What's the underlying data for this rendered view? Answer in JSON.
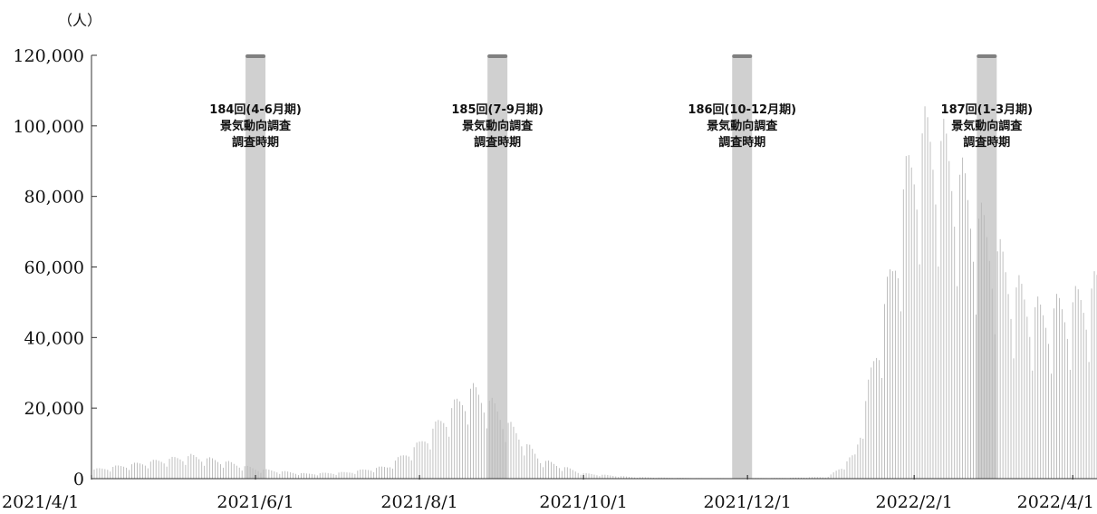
{
  "chart_data": {
    "type": "bar",
    "unit_label": "（人）",
    "x_start": "2021/4/1",
    "x_end": "2022/4/10",
    "x_tick_labels": [
      "2021/4/1",
      "2021/6/1",
      "2021/8/1",
      "2021/10/1",
      "2021/12/1",
      "2022/2/1",
      "2022/4/1"
    ],
    "y_ticks": [
      0,
      20000,
      40000,
      60000,
      80000,
      100000,
      120000
    ],
    "y_tick_labels": [
      "0",
      "20,000",
      "40,000",
      "60,000",
      "80,000",
      "100,000",
      "120,000"
    ],
    "ylim": [
      0,
      120000
    ],
    "grid": false,
    "series_color": "#b8b8b8",
    "survey_band_color": "#d0d0d0",
    "survey_cap_color": "#808080",
    "survey_periods": [
      {
        "date": "2021/6/1",
        "lines": [
          "184回(4-6月期)",
          "景気動向調査",
          "調査時期"
        ]
      },
      {
        "date": "2021/8/30",
        "lines": [
          "185回(7-9月期)",
          "景気動向調査",
          "調査時期"
        ]
      },
      {
        "date": "2021/11/29",
        "lines": [
          "186回(10-12月期)",
          "景気動向調査",
          "調査時期"
        ]
      },
      {
        "date": "2022/2/28",
        "lines": [
          "187回(1-3月期)",
          "景気動向調査",
          "調査時期"
        ]
      }
    ],
    "daily_anchor_points": [
      {
        "date": "2021/4/1",
        "value": 2500
      },
      {
        "date": "2021/4/20",
        "value": 4500
      },
      {
        "date": "2021/5/8",
        "value": 6500
      },
      {
        "date": "2021/5/20",
        "value": 5000
      },
      {
        "date": "2021/6/1",
        "value": 2800
      },
      {
        "date": "2021/6/20",
        "value": 1400
      },
      {
        "date": "2021/7/5",
        "value": 1800
      },
      {
        "date": "2021/7/20",
        "value": 3500
      },
      {
        "date": "2021/8/1",
        "value": 10000
      },
      {
        "date": "2021/8/13",
        "value": 20000
      },
      {
        "date": "2021/8/20",
        "value": 25500
      },
      {
        "date": "2021/8/26",
        "value": 23000
      },
      {
        "date": "2021/9/5",
        "value": 14000
      },
      {
        "date": "2021/9/15",
        "value": 5500
      },
      {
        "date": "2021/10/1",
        "value": 1500
      },
      {
        "date": "2021/10/20",
        "value": 400
      },
      {
        "date": "2021/11/15",
        "value": 120
      },
      {
        "date": "2021/12/15",
        "value": 200
      },
      {
        "date": "2021/12/31",
        "value": 500
      },
      {
        "date": "2022/1/5",
        "value": 3500
      },
      {
        "date": "2022/1/10",
        "value": 7000
      },
      {
        "date": "2022/1/14",
        "value": 22000
      },
      {
        "date": "2022/1/20",
        "value": 46000
      },
      {
        "date": "2022/1/24",
        "value": 60000
      },
      {
        "date": "2022/1/28",
        "value": 82000
      },
      {
        "date": "2022/2/3",
        "value": 98000
      },
      {
        "date": "2022/2/10",
        "value": 97000
      },
      {
        "date": "2022/2/17",
        "value": 88000
      },
      {
        "date": "2022/2/24",
        "value": 75000
      },
      {
        "date": "2022/3/3",
        "value": 66000
      },
      {
        "date": "2022/3/10",
        "value": 55000
      },
      {
        "date": "2022/3/20",
        "value": 47000
      },
      {
        "date": "2022/4/1",
        "value": 50000
      },
      {
        "date": "2022/4/10",
        "value": 55000
      }
    ]
  }
}
